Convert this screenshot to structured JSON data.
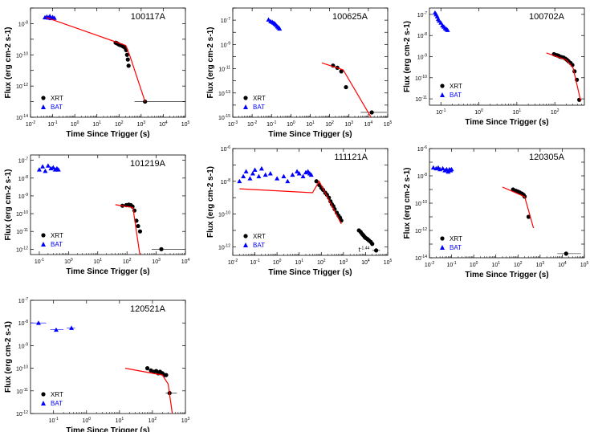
{
  "chart_data": [
    {
      "type": "scatter",
      "title": "100117A",
      "log_x": true,
      "log_y": true,
      "xlabel": "Time Since Trigger (s)",
      "ylabel": "Flux (erg cm-2 s-1)",
      "xlim": [
        0.01,
        100000
      ],
      "ylim": [
        1e-14,
        1e-07
      ],
      "x_tick_labels": [
        "10^-2",
        "10^-1",
        "10^0",
        "10^1",
        "10^2",
        "10^3",
        "10^4",
        "10^5"
      ],
      "y_tick_labels": [
        "10^-8",
        "10^-10",
        "10^-12",
        "10^-14"
      ],
      "legend": [
        "XRT",
        "BAT"
      ],
      "series": [
        {
          "name": "BAT",
          "marker": "triangle",
          "color": "#0000ff",
          "x": [
            0.045,
            0.055,
            0.065,
            0.075,
            0.085,
            0.1,
            0.12
          ],
          "y": [
            2.5e-08,
            2.8e-08,
            2.4e-08,
            3e-08,
            2.2e-08,
            2.6e-08,
            2.3e-08
          ]
        },
        {
          "name": "XRT",
          "marker": "circle",
          "color": "#000000",
          "x": [
            70,
            80,
            90,
            100,
            115,
            130,
            150,
            170,
            190,
            210,
            230,
            250,
            270,
            1500
          ],
          "y": [
            6e-10,
            5.5e-10,
            5e-10,
            4.5e-10,
            4.2e-10,
            4e-10,
            3.5e-10,
            3.2e-10,
            2.8e-10,
            2e-10,
            1e-10,
            5e-11,
            2e-11,
            1e-13
          ],
          "x_err": [
            0,
            0,
            0,
            0,
            0,
            0,
            0,
            0,
            0,
            0,
            0,
            0,
            0,
            [
              500,
              150000
            ]
          ]
        },
        {
          "name": "fit",
          "type": "line",
          "color": "#ff0000",
          "x": [
            0.05,
            200,
            300,
            1500
          ],
          "y": [
            2.5e-08,
            4e-10,
            1e-10,
            1e-13
          ]
        }
      ]
    },
    {
      "type": "scatter",
      "title": "100625A",
      "log_x": true,
      "log_y": true,
      "xlabel": "Time Since Trigger (s)",
      "ylabel": "Flux (erg cm-2 s-1)",
      "xlim": [
        0.001,
        100000
      ],
      "ylim": [
        1e-15,
        1e-06
      ],
      "x_tick_labels": [
        "10^-3",
        "10^-2",
        "10^-1",
        "10^0",
        "10^1",
        "10^2",
        "10^3",
        "10^4",
        "10^5"
      ],
      "y_tick_labels": [
        "10^-7",
        "10^-9",
        "10^-11",
        "10^-13",
        "10^-15"
      ],
      "legend": [
        "XRT",
        "BAT"
      ],
      "series": [
        {
          "name": "BAT",
          "marker": "triangle",
          "color": "#0000ff",
          "x": [
            0.07,
            0.09,
            0.11,
            0.13,
            0.15,
            0.17,
            0.2,
            0.23,
            0.26
          ],
          "y": [
            1.1e-07,
            8e-08,
            7e-08,
            6e-08,
            5e-08,
            4e-08,
            3e-08,
            2.5e-08,
            2e-08
          ]
        },
        {
          "name": "XRT",
          "marker": "circle",
          "color": "#000000",
          "x": [
            150,
            250,
            400,
            700,
            15000
          ],
          "y": [
            1.8e-11,
            1.2e-11,
            6e-12,
            3e-13,
            2.5e-15
          ],
          "x_err": [
            0,
            0,
            0,
            0,
            [
              4000,
              90000
            ]
          ]
        },
        {
          "name": "fit",
          "type": "line",
          "color": "#ff0000",
          "x": [
            40,
            500,
            30000
          ],
          "y": [
            3e-11,
            8e-12,
            1.2e-16
          ]
        }
      ]
    },
    {
      "type": "scatter",
      "title": "100702A",
      "log_x": true,
      "log_y": true,
      "xlabel": "Time Since Trigger (s)",
      "ylabel": "Flux (erg cm-2 s-1)",
      "xlim": [
        0.05,
        600
      ],
      "ylim": [
        5e-12,
        2e-07
      ],
      "x_tick_labels": [
        "10^-1",
        "10^0",
        "10^1",
        "10^2"
      ],
      "y_tick_labels": [
        "10^-7",
        "10^-8",
        "10^-9",
        "10^-10",
        "10^-11"
      ],
      "legend": [
        "XRT",
        "BAT"
      ],
      "series": [
        {
          "name": "BAT",
          "marker": "triangle",
          "color": "#0000ff",
          "x": [
            0.07,
            0.075,
            0.08,
            0.085,
            0.09,
            0.1,
            0.11,
            0.12,
            0.13,
            0.14,
            0.15
          ],
          "y": [
            1.2e-07,
            1e-07,
            8e-08,
            6e-08,
            5e-08,
            4e-08,
            3e-08,
            2.6e-08,
            2.2e-08,
            2e-08,
            1.8e-08
          ]
        },
        {
          "name": "XRT",
          "marker": "circle",
          "color": "#000000",
          "x": [
            95,
            105,
            115,
            125,
            135,
            150,
            170,
            190,
            210,
            230,
            260,
            290,
            330,
            380,
            440
          ],
          "y": [
            1.3e-09,
            1.2e-09,
            1.15e-09,
            1.1e-09,
            1e-09,
            9.5e-10,
            9e-10,
            8e-10,
            7e-10,
            6e-10,
            5e-10,
            4e-10,
            2e-10,
            8e-11,
            9e-12
          ]
        },
        {
          "name": "fit",
          "type": "line",
          "color": "#ff0000",
          "x": [
            60,
            200,
            300,
            480
          ],
          "y": [
            1.5e-09,
            7e-10,
            3e-10,
            8e-12
          ]
        }
      ]
    },
    {
      "type": "scatter",
      "title": "101219A",
      "log_x": true,
      "log_y": true,
      "xlabel": "Time Since Trigger (s)",
      "ylabel": "Flux (erg cm-2 s-1)",
      "xlim": [
        0.05,
        10000
      ],
      "ylim": [
        5e-13,
        2e-07
      ],
      "x_tick_labels": [
        "10^-1",
        "10^0",
        "10^1",
        "10^2",
        "10^3",
        "10^4"
      ],
      "y_tick_labels": [
        "10^-7",
        "10^-8",
        "10^-9",
        "10^-10",
        "10^-11",
        "10^-12"
      ],
      "legend": [
        "XRT",
        "BAT"
      ],
      "series": [
        {
          "name": "BAT",
          "marker": "triangle",
          "color": "#0000ff",
          "x": [
            0.1,
            0.13,
            0.16,
            0.2,
            0.25,
            0.3,
            0.35,
            0.4,
            0.45
          ],
          "y": [
            3e-08,
            4.5e-08,
            2.5e-08,
            5e-08,
            3.5e-08,
            4e-08,
            3e-08,
            3.5e-08,
            3e-08
          ]
        },
        {
          "name": "XRT",
          "marker": "circle",
          "color": "#000000",
          "x": [
            70,
            95,
            115,
            135,
            155,
            180,
            210,
            240,
            280,
            1500
          ],
          "y": [
            2.8e-10,
            3e-10,
            3.2e-10,
            3e-10,
            2.5e-10,
            1.5e-10,
            4e-11,
            2e-11,
            1e-11,
            1e-12
          ],
          "x_err": [
            0,
            0,
            0,
            0,
            0,
            0,
            0,
            0,
            0,
            [
              700,
              8000
            ]
          ]
        },
        {
          "name": "fit",
          "type": "line",
          "color": "#ff0000",
          "x": [
            40,
            160,
            280
          ],
          "y": [
            3.2e-10,
            2.2e-10,
            4e-13
          ]
        }
      ]
    },
    {
      "type": "scatter",
      "title": "111121A",
      "log_x": true,
      "log_y": true,
      "xlabel": "Time Since Trigger (s)",
      "ylabel": "Flux (erg cm-2 s-1)",
      "xlim": [
        0.01,
        100000
      ],
      "ylim": [
        3e-13,
        1e-06
      ],
      "x_tick_labels": [
        "10^-2",
        "10^-1",
        "10^0",
        "10^1",
        "10^2",
        "10^3",
        "10^4",
        "10^5"
      ],
      "y_tick_labels": [
        "10^-6",
        "10^-8",
        "10^-10",
        "10^-12"
      ],
      "legend": [
        "XRT",
        "BAT"
      ],
      "annotation": {
        "text": "t",
        "sup": "-1.44",
        "anchor_x": 15000,
        "anchor_y": 5e-13
      },
      "series": [
        {
          "name": "BAT",
          "marker": "triangle",
          "color": "#0000ff",
          "x": [
            0.02,
            0.03,
            0.04,
            0.06,
            0.08,
            0.1,
            0.15,
            0.2,
            0.3,
            0.5,
            1,
            2,
            3,
            5,
            8,
            10,
            15,
            20,
            25,
            30,
            35
          ],
          "y": [
            1e-08,
            2e-08,
            4e-08,
            1.5e-08,
            3e-08,
            5e-08,
            2e-08,
            6e-08,
            2.5e-08,
            3e-08,
            1.5e-08,
            2e-08,
            1e-08,
            2.5e-08,
            4e-08,
            3e-08,
            2e-08,
            3.5e-08,
            4e-08,
            3e-08,
            2.5e-08
          ]
        },
        {
          "name": "XRT",
          "marker": "circle",
          "color": "#000000",
          "x": [
            60,
            80,
            100,
            120,
            150,
            180,
            220,
            260,
            300,
            350,
            400,
            500,
            600,
            700,
            800,
            5000,
            6000,
            7000,
            8000,
            9000,
            10000,
            12000,
            14000,
            17000,
            20000,
            30000
          ],
          "y": [
            1e-08,
            6e-09,
            4e-09,
            3e-09,
            2e-09,
            1.5e-09,
            1e-09,
            6e-10,
            4e-10,
            3e-10,
            2e-10,
            1.2e-10,
            8e-11,
            6e-11,
            4e-11,
            1e-11,
            8e-12,
            6e-12,
            5e-12,
            4e-12,
            3.5e-12,
            3e-12,
            2.5e-12,
            2e-12,
            1.5e-12,
            6e-13
          ],
          "x_err": [
            0,
            0,
            0,
            0,
            0,
            0,
            0,
            0,
            0,
            0,
            0,
            0,
            0,
            0,
            0,
            0,
            0,
            0,
            0,
            0,
            0,
            0,
            0,
            0,
            0,
            [
              20000,
              45000
            ]
          ]
        },
        {
          "name": "fit",
          "type": "line",
          "color": "#ff0000",
          "x": [
            0.02,
            40,
            80,
            800
          ],
          "y": [
            3.5e-09,
            2e-09,
            1e-08,
            2.5e-11
          ]
        }
      ]
    },
    {
      "type": "scatter",
      "title": "120305A",
      "log_x": true,
      "log_y": true,
      "xlabel": "Time Since Trigger (s)",
      "ylabel": "Flux (erg cm-2 s-1)",
      "xlim": [
        0.01,
        100000
      ],
      "ylim": [
        1e-14,
        1e-06
      ],
      "x_tick_labels": [
        "10^-2",
        "10^-1",
        "10^0",
        "10^1",
        "10^2",
        "10^3",
        "10^4",
        "10^5"
      ],
      "y_tick_labels": [
        "10^-6",
        "10^-8",
        "10^-10",
        "10^-12",
        "10^-14"
      ],
      "legend": [
        "XRT",
        "BAT"
      ],
      "series": [
        {
          "name": "BAT",
          "marker": "triangle",
          "color": "#0000ff",
          "x": [
            0.015,
            0.02,
            0.025,
            0.03,
            0.04,
            0.05,
            0.06,
            0.07,
            0.08,
            0.09,
            0.1
          ],
          "y": [
            4e-08,
            3.5e-08,
            4e-08,
            3e-08,
            3.5e-08,
            2.5e-08,
            3e-08,
            2e-08,
            3e-08,
            2.5e-08,
            3e-08
          ]
        },
        {
          "name": "XRT",
          "marker": "circle",
          "color": "#000000",
          "x": [
            60,
            80,
            100,
            120,
            150,
            180,
            200,
            300,
            15000
          ],
          "y": [
            1e-09,
            8e-10,
            7e-10,
            6e-10,
            5e-10,
            4e-10,
            3e-10,
            1e-11,
            2e-14
          ],
          "x_err": [
            0,
            0,
            0,
            0,
            0,
            0,
            0,
            0,
            [
              6000,
              70000
            ]
          ]
        },
        {
          "name": "fit",
          "type": "line",
          "color": "#ff0000",
          "x": [
            20,
            200,
            500
          ],
          "y": [
            1.5e-09,
            3e-10,
            1.5e-12
          ]
        }
      ]
    },
    {
      "type": "scatter",
      "title": "120521A",
      "log_x": true,
      "log_y": true,
      "xlabel": "Time Since Trigger (s)",
      "ylabel": "Flux (erg cm-2 s-1)",
      "xlim": [
        0.02,
        1000
      ],
      "ylim": [
        1e-12,
        1e-07
      ],
      "x_tick_labels": [
        "10^-1",
        "10^0",
        "10^1",
        "10^2",
        "10^3"
      ],
      "y_tick_labels": [
        "10^-7",
        "10^-8",
        "10^-9",
        "10^-10",
        "10^-11",
        "10^-12"
      ],
      "legend": [
        "XRT",
        "BAT"
      ],
      "series": [
        {
          "name": "BAT",
          "marker": "triangle",
          "color": "#0000ff",
          "x": [
            0.035,
            0.12,
            0.35
          ],
          "y": [
            1e-08,
            5e-09,
            6e-09
          ],
          "x_err": [
            [
              0.02,
              0.06
            ],
            [
              0.08,
              0.2
            ],
            [
              0.25,
              0.45
            ]
          ]
        },
        {
          "name": "XRT",
          "marker": "circle",
          "color": "#000000",
          "x": [
            70,
            90,
            110,
            130,
            150,
            170,
            200,
            230,
            260,
            330
          ],
          "y": [
            1e-10,
            8e-11,
            7e-11,
            7.5e-11,
            6e-11,
            7e-11,
            6e-11,
            5e-11,
            5e-11,
            8e-12
          ],
          "x_err": [
            0,
            0,
            0,
            0,
            0,
            0,
            0,
            0,
            0,
            [
              250,
              550
            ]
          ]
        },
        {
          "name": "fit",
          "type": "line",
          "color": "#ff0000",
          "x": [
            15,
            200,
            300,
            500
          ],
          "y": [
            1e-10,
            5e-11,
            2e-11,
            1e-13
          ]
        }
      ]
    }
  ]
}
